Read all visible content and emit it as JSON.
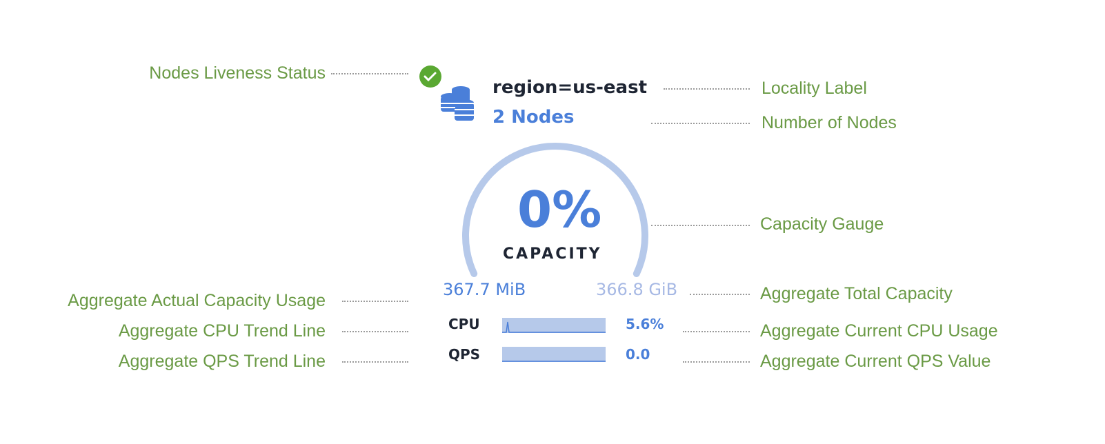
{
  "annotations": {
    "liveness": "Nodes Liveness Status",
    "locality": "Locality Label",
    "num_nodes": "Number of Nodes",
    "gauge": "Capacity Gauge",
    "actual_usage": "Aggregate Actual Capacity Usage",
    "total_capacity": "Aggregate Total Capacity",
    "cpu_trend": "Aggregate CPU Trend Line",
    "cpu_current": "Aggregate Current CPU Usage",
    "qps_trend": "Aggregate QPS Trend Line",
    "qps_current": "Aggregate Current QPS Value"
  },
  "widget": {
    "locality": "region=us-east",
    "nodes": "2 Nodes",
    "status_icon": "check-circle-icon",
    "node_icon": "database-stack-icon",
    "capacity_percent": "0%",
    "capacity_fraction": 0,
    "capacity_label": "CAPACITY",
    "used": "367.7 MiB",
    "total": "366.8 GiB",
    "cpu_label": "CPU",
    "cpu_value": "5.6%",
    "qps_label": "QPS",
    "qps_value": "0.0"
  },
  "colors": {
    "annotation": "#6a9a45",
    "accent": "#4a7fd9",
    "status_ok": "#5aa832",
    "gauge_track": "#b6c9ea"
  }
}
